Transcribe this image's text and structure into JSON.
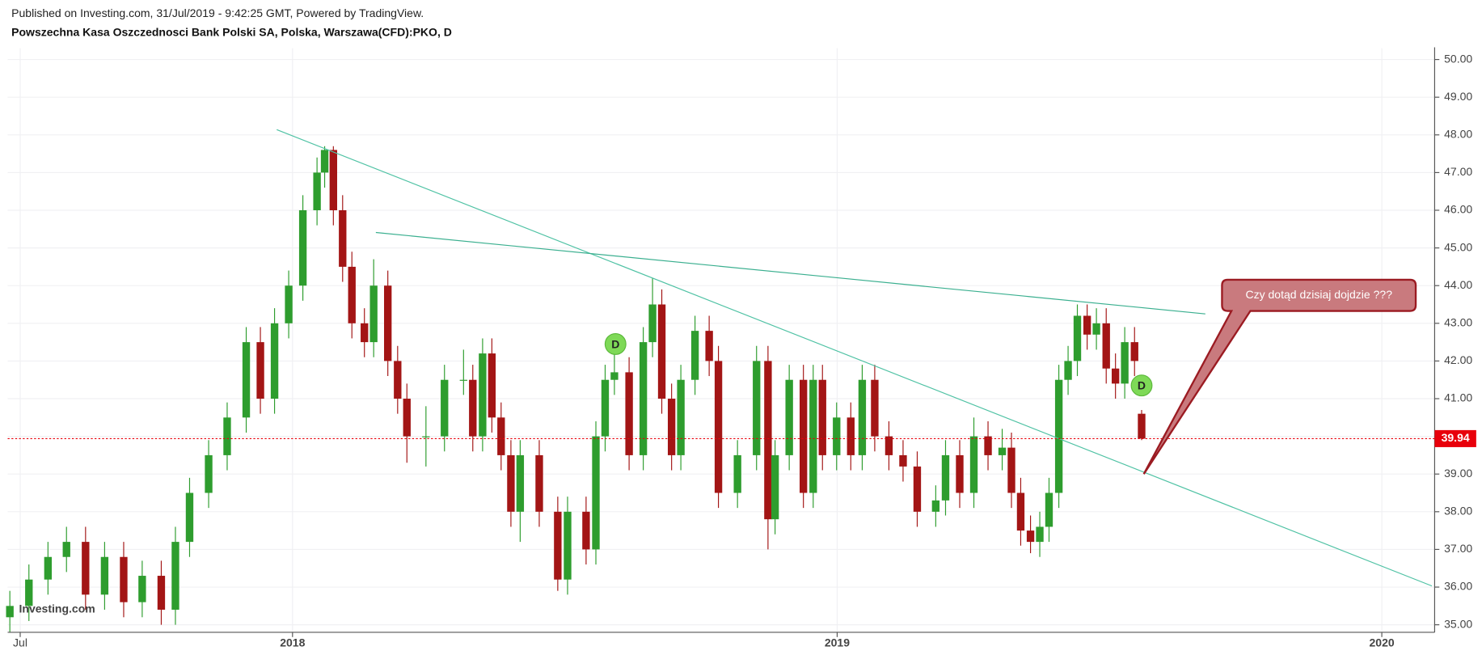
{
  "header": {
    "published": "Published on Investing.com, 31/Jul/2019 - 9:42:25 GMT, Powered by TradingView.",
    "symbol": "Powszechna Kasa Oszczednosci Bank Polski SA, Polska, Warszawa(CFD):PKO, D"
  },
  "chart_data": {
    "type": "candlestick",
    "watermark": "Investing.com",
    "up_color": "#2e9d2e",
    "down_color": "#a31515",
    "grid": true,
    "xlim": [
      2017.477,
      2020.097
    ],
    "ylim": [
      34.8,
      50.3
    ],
    "xticks": [
      {
        "value": 2017.5,
        "label": "Jul"
      },
      2018,
      2019,
      2020
    ],
    "yticks": [
      {
        "value": 35,
        "label": "35.00"
      },
      {
        "value": 36,
        "label": "36.00"
      },
      {
        "value": 37,
        "label": "37.00"
      },
      {
        "value": 38,
        "label": "38.00"
      },
      {
        "value": 39,
        "label": "39.00"
      },
      {
        "value": 40,
        "label": "40.00"
      },
      {
        "value": 41,
        "label": "41.00"
      },
      {
        "value": 42,
        "label": "42.00"
      },
      {
        "value": 43,
        "label": "43.00"
      },
      {
        "value": 44,
        "label": "44.00"
      },
      {
        "value": 45,
        "label": "45.00"
      },
      {
        "value": 46,
        "label": "46.00"
      },
      {
        "value": 47,
        "label": "47.00"
      },
      {
        "value": 48,
        "label": "48.00"
      },
      {
        "value": 49,
        "label": "49.00"
      },
      {
        "value": 50,
        "label": "50.00"
      }
    ],
    "x": [
      2017.481,
      2017.516,
      2017.551,
      2017.585,
      2017.62,
      2017.655,
      2017.69,
      2017.724,
      2017.759,
      2017.785,
      2017.811,
      2017.846,
      2017.88,
      2017.915,
      2017.941,
      2017.967,
      2017.993,
      2018.019,
      2018.045,
      2018.059,
      2018.075,
      2018.092,
      2018.109,
      2018.132,
      2018.149,
      2018.175,
      2018.193,
      2018.21,
      2018.245,
      2018.279,
      2018.314,
      2018.331,
      2018.349,
      2018.366,
      2018.383,
      2018.401,
      2018.418,
      2018.453,
      2018.487,
      2018.505,
      2018.539,
      2018.557,
      2018.574,
      2018.591,
      2018.618,
      2018.644,
      2018.661,
      2018.678,
      2018.696,
      2018.713,
      2018.739,
      2018.765,
      2018.782,
      2018.817,
      2018.852,
      2018.873,
      2018.886,
      2018.912,
      2018.938,
      2018.956,
      2018.973,
      2018.999,
      2019.025,
      2019.046,
      2019.069,
      2019.095,
      2019.121,
      2019.147,
      2019.181,
      2019.199,
      2019.225,
      2019.251,
      2019.277,
      2019.303,
      2019.32,
      2019.337,
      2019.355,
      2019.372,
      2019.389,
      2019.407,
      2019.424,
      2019.441,
      2019.459,
      2019.476,
      2019.494,
      2019.511,
      2019.528,
      2019.546,
      2019.559
    ],
    "open": [
      35.2,
      35.5,
      36.2,
      36.8,
      37.2,
      35.8,
      36.8,
      35.6,
      36.3,
      35.4,
      37.2,
      38.5,
      39.5,
      40.5,
      42.5,
      41,
      43,
      44,
      46,
      47,
      47.6,
      46,
      44.5,
      43,
      42.5,
      44,
      42,
      41,
      40,
      40,
      41.5,
      41.5,
      40,
      42.2,
      40.5,
      39.5,
      38,
      39.5,
      38,
      36.2,
      38,
      37,
      40,
      41.5,
      41.7,
      39.5,
      42.5,
      43.5,
      41,
      39.5,
      41.5,
      42.8,
      42,
      38.5,
      39.5,
      42,
      37.8,
      39.5,
      41.5,
      38.5,
      41.5,
      39.5,
      40.5,
      39.5,
      41.5,
      40,
      39.5,
      39.2,
      38,
      38.3,
      39.5,
      38.5,
      40,
      39.5,
      39.7,
      38.5,
      37.5,
      37.2,
      37.6,
      38.5,
      41.5,
      42,
      43.2,
      42.7,
      43,
      41.8,
      41.4,
      42.5,
      40.6
    ],
    "high": [
      35.9,
      36.6,
      37.2,
      37.6,
      37.6,
      37.2,
      37.2,
      36.7,
      36.7,
      37.6,
      38.9,
      39.9,
      40.9,
      42.9,
      42.9,
      43.4,
      44.4,
      46.4,
      47.4,
      47.7,
      47.7,
      46.4,
      44.9,
      43.4,
      44.7,
      44.4,
      42.4,
      41.4,
      40.8,
      41.9,
      42.3,
      41.9,
      42.6,
      42.6,
      40.9,
      39.9,
      39.9,
      39.9,
      38.4,
      38.4,
      38.4,
      40.4,
      41.9,
      42.3,
      42.1,
      42.9,
      44.2,
      43.9,
      41.4,
      41.9,
      43.2,
      43.2,
      42.4,
      39.9,
      42.4,
      42.4,
      39.9,
      41.9,
      41.9,
      41.9,
      41.9,
      40.9,
      40.9,
      41.9,
      41.9,
      40.4,
      39.9,
      39.6,
      38.7,
      39.9,
      39.9,
      40.5,
      40.4,
      40.2,
      40.1,
      38.9,
      37.9,
      38,
      38.9,
      41.9,
      42.4,
      43.5,
      43.5,
      43.4,
      43.4,
      42.2,
      42.9,
      42.9,
      40.7
    ],
    "low": [
      34.8,
      35.1,
      35.8,
      36.4,
      35.4,
      35.4,
      35.2,
      35.2,
      35,
      35,
      36.8,
      38.1,
      39.1,
      40.1,
      40.6,
      40.6,
      42.6,
      43.6,
      45.6,
      46.6,
      45.6,
      44.1,
      42.6,
      42.1,
      42.1,
      41.6,
      40.6,
      39.3,
      39.2,
      39.6,
      41.1,
      39.6,
      39.6,
      40.1,
      39.1,
      37.6,
      37.2,
      37.6,
      35.9,
      35.8,
      36.6,
      36.6,
      39.6,
      41.1,
      39.1,
      39.1,
      42.1,
      40.6,
      39.1,
      39.1,
      41.1,
      41.6,
      38.1,
      38.1,
      39.1,
      37,
      37.4,
      39.1,
      38.1,
      38.1,
      39.1,
      39.1,
      39.1,
      39.1,
      39.6,
      39.1,
      38.8,
      37.6,
      37.6,
      37.9,
      38.1,
      38.1,
      39.1,
      39.1,
      38.1,
      37.1,
      36.9,
      36.8,
      37.2,
      38.1,
      41.1,
      41.6,
      42.3,
      42.3,
      41.4,
      41,
      41,
      41.6,
      39.9
    ],
    "close": [
      35.5,
      36.2,
      36.8,
      37.2,
      35.8,
      36.8,
      35.6,
      36.3,
      35.4,
      37.2,
      38.5,
      39.5,
      40.5,
      42.5,
      41,
      43,
      44,
      46,
      47,
      47.6,
      46,
      44.5,
      43,
      42.5,
      44,
      42,
      41,
      40,
      40,
      41.5,
      41.5,
      40,
      42.2,
      40.5,
      39.5,
      38,
      39.5,
      38,
      36.2,
      38,
      37,
      40,
      41.5,
      41.7,
      39.5,
      42.5,
      43.5,
      41,
      39.5,
      41.5,
      42.8,
      42,
      38.5,
      39.5,
      42,
      37.8,
      39.5,
      41.5,
      38.5,
      41.5,
      39.5,
      40.5,
      39.5,
      41.5,
      40,
      39.5,
      39.2,
      38,
      38.3,
      39.5,
      38.5,
      40,
      39.5,
      39.7,
      38.5,
      37.5,
      37.2,
      37.6,
      38.5,
      41.5,
      42,
      43.2,
      42.7,
      43,
      41.8,
      41.4,
      42.5,
      42,
      39.94
    ],
    "last_color": "#e8000b",
    "trendlines": [
      {
        "x": [
          2017.971,
          2020.092
        ],
        "y": [
          48.14,
          36.03
        ],
        "color": "#4fc2a4"
      },
      {
        "x": [
          2018.153,
          2019.676
        ],
        "y": [
          45.41,
          43.25
        ],
        "color": "#3aaf8f"
      }
    ],
    "events": [
      {
        "x": 2018.593,
        "y": 42.45,
        "label": "D"
      },
      {
        "x": 2019.559,
        "y": 41.35,
        "label": "D"
      }
    ],
    "callout": {
      "text": "Czy dotąd dzisiaj dojdzie ???",
      "x": 2019.563,
      "y": 39.0
    }
  }
}
